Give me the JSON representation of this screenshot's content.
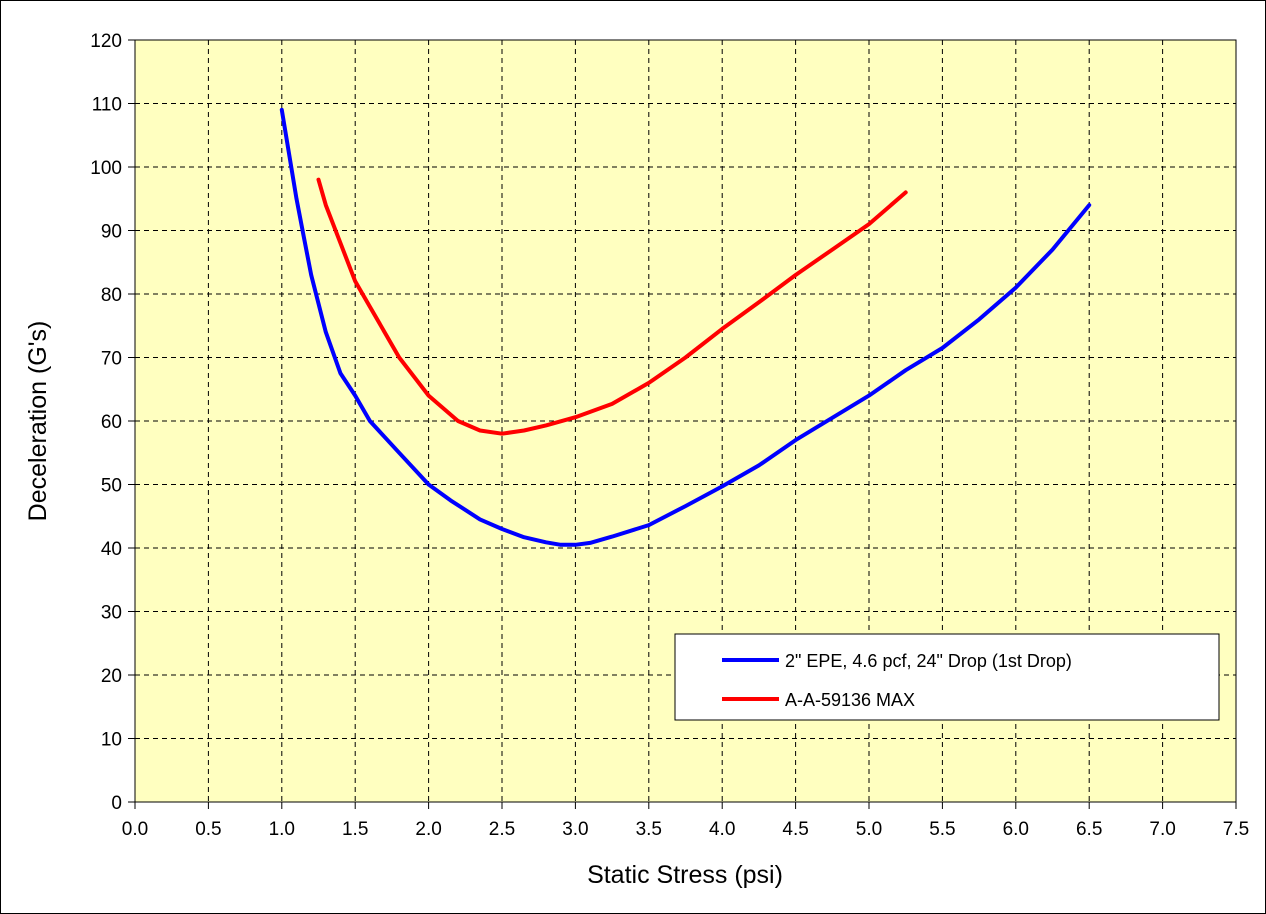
{
  "chart_data": {
    "type": "line",
    "title": "",
    "xlabel": "Static Stress (psi)",
    "ylabel": "Deceleration (G's)",
    "xlim": [
      0.0,
      7.5
    ],
    "ylim": [
      0,
      120
    ],
    "x_ticks": [
      "0.0",
      "0.5",
      "1.0",
      "1.5",
      "2.0",
      "2.5",
      "3.0",
      "3.5",
      "4.0",
      "4.5",
      "5.0",
      "5.5",
      "6.0",
      "6.5",
      "7.0",
      "7.5"
    ],
    "y_ticks": [
      "0",
      "10",
      "20",
      "30",
      "40",
      "50",
      "60",
      "70",
      "80",
      "90",
      "100",
      "110",
      "120"
    ],
    "grid": true,
    "plot_background": "#ffffc0",
    "legend_position": "bottom-right",
    "series": [
      {
        "name": "2\" EPE, 4.6 pcf, 24\" Drop (1st Drop)",
        "color": "#0000ff",
        "x": [
          1.0,
          1.1,
          1.15,
          1.2,
          1.3,
          1.4,
          1.5,
          1.6,
          1.8,
          2.0,
          2.15,
          2.35,
          2.5,
          2.65,
          2.8,
          2.9,
          3.0,
          3.1,
          3.25,
          3.5,
          3.75,
          4.0,
          4.25,
          4.5,
          4.75,
          5.0,
          5.25,
          5.5,
          5.75,
          6.0,
          6.25,
          6.5
        ],
        "y": [
          109,
          95,
          89,
          83,
          74,
          67.5,
          64,
          60,
          55,
          50,
          47.5,
          44.5,
          43,
          41.7,
          40.9,
          40.5,
          40.5,
          40.8,
          41.8,
          43.6,
          46.6,
          49.7,
          53,
          57,
          60.5,
          64,
          68,
          71.5,
          76,
          81,
          87,
          94
        ]
      },
      {
        "name": "A-A-59136 MAX",
        "color": "#ff0000",
        "x": [
          1.25,
          1.3,
          1.4,
          1.5,
          1.6,
          1.8,
          2.0,
          2.2,
          2.35,
          2.5,
          2.65,
          2.8,
          3.0,
          3.25,
          3.5,
          3.75,
          4.0,
          4.25,
          4.5,
          4.75,
          5.0,
          5.25
        ],
        "y": [
          98,
          94,
          88,
          82,
          78,
          70,
          64,
          60,
          58.5,
          58,
          58.5,
          59.3,
          60.6,
          62.7,
          66,
          70,
          74.5,
          78.7,
          83,
          87,
          91,
          96
        ]
      }
    ]
  }
}
